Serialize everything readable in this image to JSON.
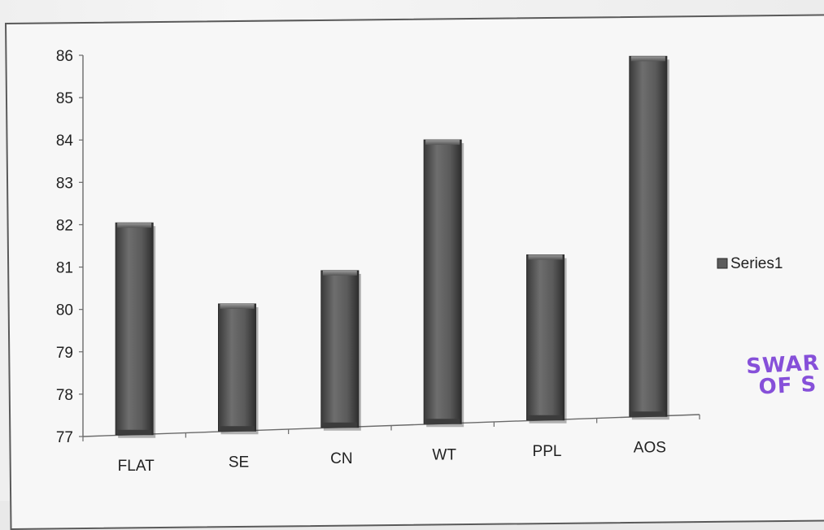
{
  "chart_data": {
    "type": "bar",
    "title": "",
    "xlabel": "",
    "ylabel": "",
    "categories": [
      "FLAT",
      "SE",
      "CN",
      "WT",
      "PPL",
      "AOS"
    ],
    "series": [
      {
        "name": "Series1",
        "values": [
          82.0,
          80.0,
          80.7,
          83.7,
          80.9,
          85.5
        ]
      }
    ],
    "ylim": [
      77,
      86
    ],
    "yticks": [
      77,
      78,
      79,
      80,
      81,
      82,
      83,
      84,
      85,
      86
    ],
    "grid": false,
    "legend_position": "right",
    "bar_color": "#5b5b5b"
  },
  "stamp": {
    "line1": "SWAR",
    "line2": "OF S"
  }
}
